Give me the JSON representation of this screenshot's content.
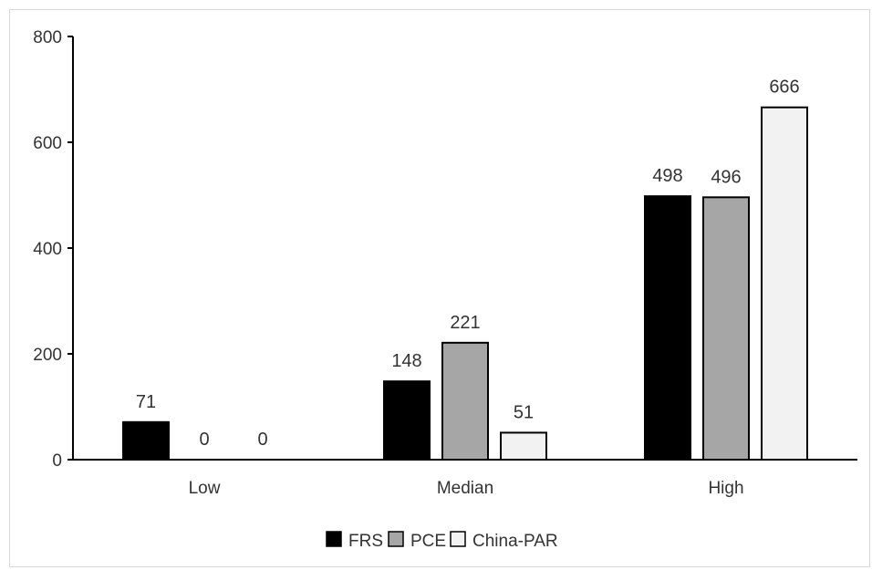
{
  "chart_data": {
    "type": "bar",
    "title": "",
    "xlabel": "",
    "ylabel": "",
    "ylim": [
      0,
      800
    ],
    "yticks": [
      0,
      200,
      400,
      600,
      800
    ],
    "categories": [
      "Low",
      "Median",
      "High"
    ],
    "series": [
      {
        "name": "FRS",
        "values": [
          71,
          148,
          498
        ],
        "color": "#000000"
      },
      {
        "name": "PCE",
        "values": [
          0,
          221,
          496
        ],
        "color": "#a6a6a6"
      },
      {
        "name": "China-PAR",
        "values": [
          0,
          51,
          666
        ],
        "color": "#f2f2f2"
      }
    ],
    "data_labels_shown": true,
    "grid": false,
    "legend_position": "bottom"
  }
}
